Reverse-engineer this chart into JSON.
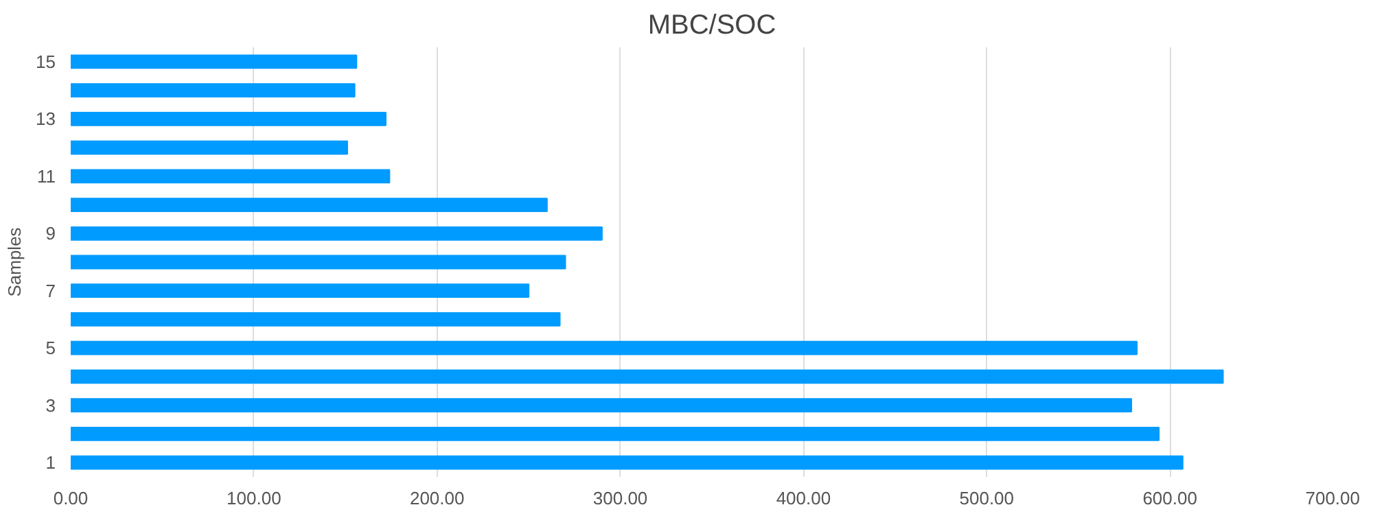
{
  "chart_data": {
    "type": "bar",
    "orientation": "horizontal",
    "title": "MBC/SOC",
    "ylabel": "Samples",
    "categories": [
      "15",
      null,
      "13",
      null,
      "11",
      null,
      "9",
      null,
      "7",
      null,
      "5",
      null,
      "3",
      null,
      "1"
    ],
    "values": [
      156,
      155,
      172,
      151,
      174,
      260,
      290,
      270,
      250,
      267,
      582,
      629,
      579,
      594,
      607
    ],
    "color": "#009bff",
    "xlim": [
      0,
      700
    ],
    "xticks": [
      {
        "value": 0,
        "label": "0.00"
      },
      {
        "value": 100,
        "label": "100.00"
      },
      {
        "value": 200,
        "label": "200.00"
      },
      {
        "value": 300,
        "label": "300.00"
      },
      {
        "value": 400,
        "label": "400.00"
      },
      {
        "value": 500,
        "label": "500.00"
      },
      {
        "value": 600,
        "label": "600.00"
      },
      {
        "value": 700,
        "label": "700.00"
      }
    ],
    "grid": "x"
  }
}
